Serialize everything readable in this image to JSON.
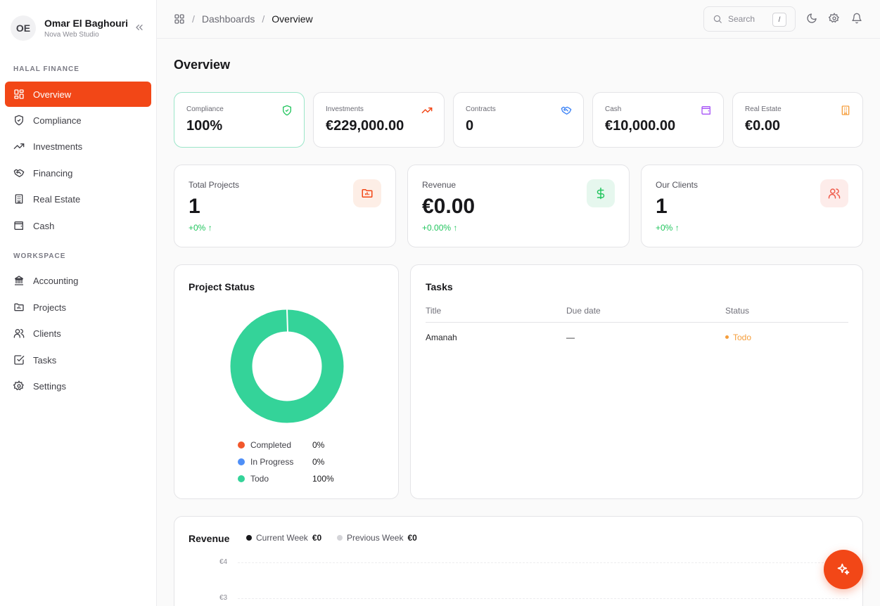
{
  "user": {
    "initials": "OE",
    "name": "Omar El Baghouri",
    "org": "Nova Web Studio"
  },
  "sidebar": {
    "section1": "HALAL FINANCE",
    "items1": [
      {
        "label": "Overview",
        "icon": "grid-icon",
        "active": true
      },
      {
        "label": "Compliance",
        "icon": "shield-icon"
      },
      {
        "label": "Investments",
        "icon": "trending-up-icon"
      },
      {
        "label": "Financing",
        "icon": "handshake-icon"
      },
      {
        "label": "Real Estate",
        "icon": "building-icon"
      },
      {
        "label": "Cash",
        "icon": "wallet-icon"
      }
    ],
    "section2": "WORKSPACE",
    "items2": [
      {
        "label": "Accounting",
        "icon": "bank-icon"
      },
      {
        "label": "Projects",
        "icon": "folder-icon"
      },
      {
        "label": "Clients",
        "icon": "users-icon"
      },
      {
        "label": "Tasks",
        "icon": "check-square-icon"
      },
      {
        "label": "Settings",
        "icon": "gear-icon"
      }
    ]
  },
  "breadcrumb": {
    "parent": "Dashboards",
    "current": "Overview"
  },
  "search": {
    "placeholder": "Search",
    "shortcut": "/"
  },
  "page": {
    "title": "Overview"
  },
  "stats_small": [
    {
      "label": "Compliance",
      "value": "100%",
      "icon": "shield-check-icon",
      "color": "#22c55e"
    },
    {
      "label": "Investments",
      "value": "€229,000.00",
      "icon": "trending-up-icon",
      "color": "#f24717"
    },
    {
      "label": "Contracts",
      "value": "0",
      "icon": "handshake-icon",
      "color": "#3b82f6"
    },
    {
      "label": "Cash",
      "value": "€10,000.00",
      "icon": "wallet-icon",
      "color": "#a855f7"
    },
    {
      "label": "Real Estate",
      "value": "€0.00",
      "icon": "building-icon",
      "color": "#f59e3c"
    }
  ],
  "stats_big": [
    {
      "label": "Total Projects",
      "value": "1",
      "delta": "+0%",
      "icon": "folder-icon",
      "color": "#f24717",
      "bg": "#fdeee6"
    },
    {
      "label": "Revenue",
      "value": "€0.00",
      "delta": "+0.00%",
      "icon": "dollar-icon",
      "color": "#22c55e",
      "bg": "#e6f7ee"
    },
    {
      "label": "Our Clients",
      "value": "1",
      "delta": "+0%",
      "icon": "users-icon",
      "color": "#ef5a4a",
      "bg": "#fdecea"
    }
  ],
  "project_status": {
    "title": "Project Status",
    "legend": [
      {
        "name": "Completed",
        "pct": "0%",
        "color": "#f2572b"
      },
      {
        "name": "In Progress",
        "pct": "0%",
        "color": "#4f8ff7"
      },
      {
        "name": "Todo",
        "pct": "100%",
        "color": "#34d399"
      }
    ]
  },
  "tasks": {
    "title": "Tasks",
    "columns": [
      "Title",
      "Due date",
      "Status"
    ],
    "rows": [
      {
        "title": "Amanah",
        "due": "—",
        "status": "Todo"
      }
    ]
  },
  "revenue": {
    "title": "Revenue",
    "current_label": "Current Week",
    "current_value": "€0",
    "previous_label": "Previous Week",
    "previous_value": "€0",
    "yticks": [
      "€4",
      "€3"
    ]
  }
}
